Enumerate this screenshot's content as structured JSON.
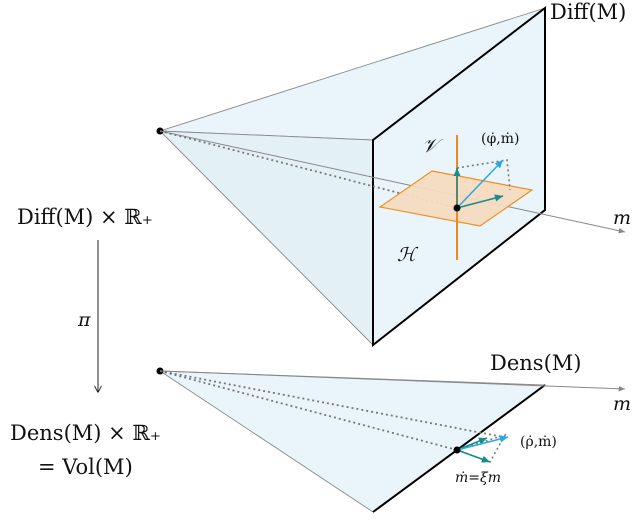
{
  "labels": {
    "diff_m": "Diff(M)",
    "m_top": "m",
    "m_bottom": "m",
    "v_label": "𝒱",
    "h_label": "ℋ",
    "phi_m": "(φ̇,ṁ)",
    "diff_m_times_r": "Diff(M) × ℝ₊",
    "pi": "π",
    "dens_m": "Dens(M)",
    "dens_m_times_r": "Dens(M) × ℝ₊",
    "eq_vol": "= Vol(M)",
    "rho_m": "(ρ̇,ṁ)",
    "m_dot_eq": "ṁ=ξm"
  },
  "colors": {
    "face_fill": "#e9f5fa",
    "edge": "#000000",
    "thin_edge": "#7a7a7a",
    "horizontal_plane": "#f5dcc0",
    "plane_edge": "#ef8a1a",
    "vertical_line": "#ef8a1a",
    "teal_arrow": "#1a8a8a",
    "cyan_arrow": "#29a8e0",
    "dotted": "#777777"
  }
}
